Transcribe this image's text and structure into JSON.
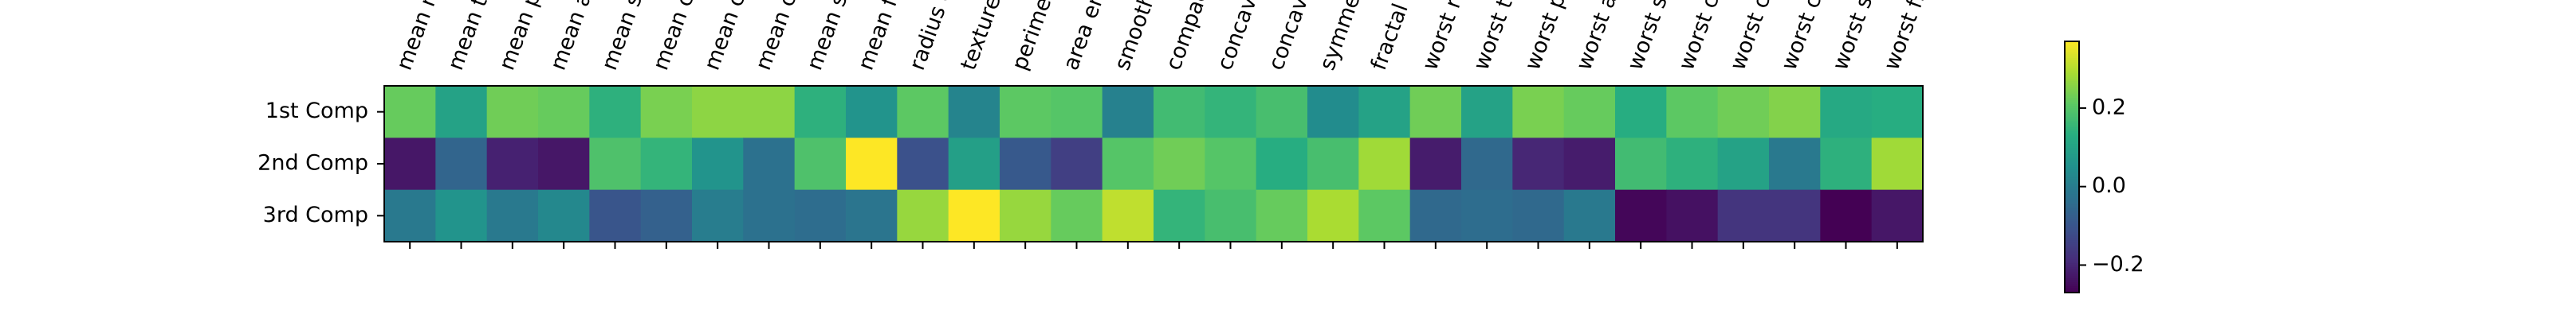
{
  "chart_data": {
    "type": "heatmap",
    "x_labels": [
      "mean radius",
      "mean texture",
      "mean perimeter",
      "mean area",
      "mean smoothness",
      "mean compactness",
      "mean concavity",
      "mean concave points",
      "mean symmetry",
      "mean fractal dimension",
      "radius error",
      "texture error",
      "perimeter error",
      "area error",
      "smoothness error",
      "compactness error",
      "concavity error",
      "concave points error",
      "symmetry error",
      "fractal dimension error",
      "worst radius",
      "worst texture",
      "worst perimeter",
      "worst area",
      "worst smoothness",
      "worst compactness",
      "worst concavity",
      "worst concave points",
      "worst symmetry",
      "worst fractal dimension"
    ],
    "y_labels": [
      "1st Comp",
      "2nd Comp",
      "3rd Comp"
    ],
    "values": [
      [
        0.22,
        0.1,
        0.23,
        0.22,
        0.14,
        0.24,
        0.26,
        0.26,
        0.14,
        0.06,
        0.21,
        0.02,
        0.21,
        0.2,
        0.01,
        0.17,
        0.15,
        0.18,
        0.04,
        0.1,
        0.23,
        0.1,
        0.24,
        0.22,
        0.13,
        0.21,
        0.23,
        0.25,
        0.12,
        0.13
      ],
      [
        -0.23,
        -0.06,
        -0.21,
        -0.23,
        0.19,
        0.15,
        0.06,
        -0.03,
        0.19,
        0.37,
        -0.11,
        0.09,
        -0.09,
        -0.15,
        0.2,
        0.23,
        0.2,
        0.13,
        0.18,
        0.28,
        -0.22,
        -0.05,
        -0.2,
        -0.22,
        0.17,
        0.14,
        0.1,
        -0.01,
        0.14,
        0.28
      ],
      [
        -0.01,
        0.06,
        -0.01,
        0.03,
        -0.1,
        -0.07,
        0.0,
        -0.03,
        -0.04,
        -0.02,
        0.27,
        0.37,
        0.27,
        0.22,
        0.31,
        0.15,
        0.18,
        0.22,
        0.29,
        0.21,
        -0.05,
        -0.04,
        -0.05,
        -0.01,
        -0.26,
        -0.24,
        -0.17,
        -0.17,
        -0.27,
        -0.23
      ]
    ],
    "vmin": -0.27,
    "vmax": 0.37,
    "colormap": "viridis",
    "colorbar_ticks": [
      0.2,
      0.0,
      -0.2
    ],
    "colorbar_tick_labels": [
      "0.2",
      "0.0",
      "−0.2"
    ]
  }
}
